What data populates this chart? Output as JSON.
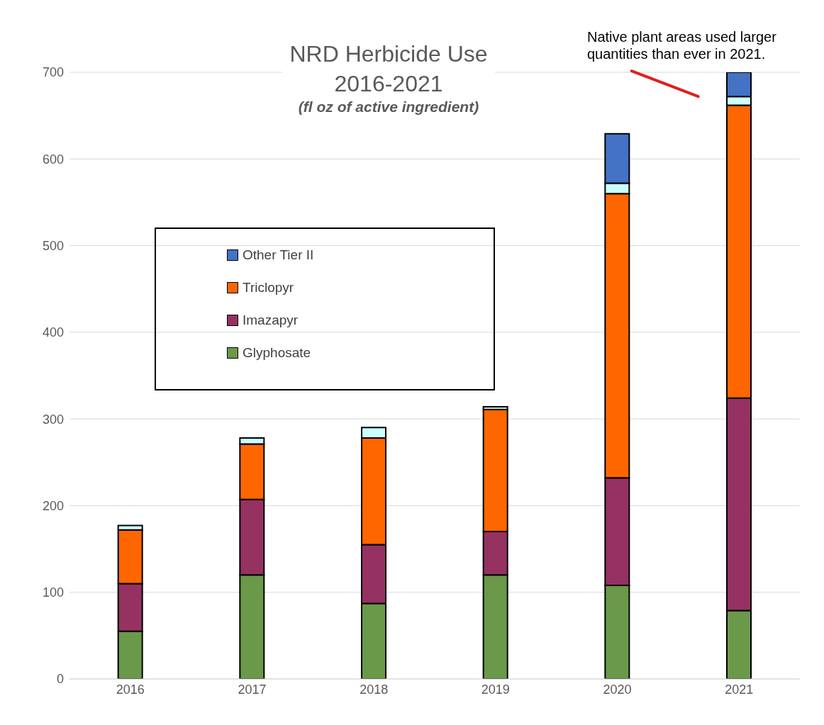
{
  "chart_data": {
    "type": "bar",
    "title": "NRD Herbicide Use 2016-2021",
    "subtitle": "(fl oz of active ingredient)",
    "annotations": [
      {
        "text": "Native plant areas used larger quantities than ever in 2021.",
        "x": "2021",
        "y": 672
      }
    ],
    "categories": [
      "2016",
      "2017",
      "2018",
      "2019",
      "2020",
      "2021"
    ],
    "series": [
      {
        "name": "Glyphosate",
        "color": "#6a994a",
        "values": [
          55,
          120,
          87,
          120,
          108,
          79
        ]
      },
      {
        "name": "Imazapyr",
        "color": "#953262",
        "values": [
          55,
          87,
          68,
          50,
          124,
          245
        ]
      },
      {
        "name": "Triclopyr",
        "color": "#ff6600",
        "values": [
          62,
          64,
          123,
          141,
          328,
          338
        ]
      },
      {
        "color": "#ccffff",
        "values": [
          5,
          7,
          12,
          3,
          12,
          10
        ]
      },
      {
        "name": "Other Tier II",
        "color": "#4472c4",
        "values": [
          null,
          null,
          null,
          null,
          57,
          28
        ]
      }
    ],
    "stacked": true,
    "ylim": [
      0,
      700
    ],
    "yticks": [
      0,
      100,
      200,
      300,
      400,
      500,
      600,
      700
    ],
    "grid": "y",
    "legend": "left"
  }
}
